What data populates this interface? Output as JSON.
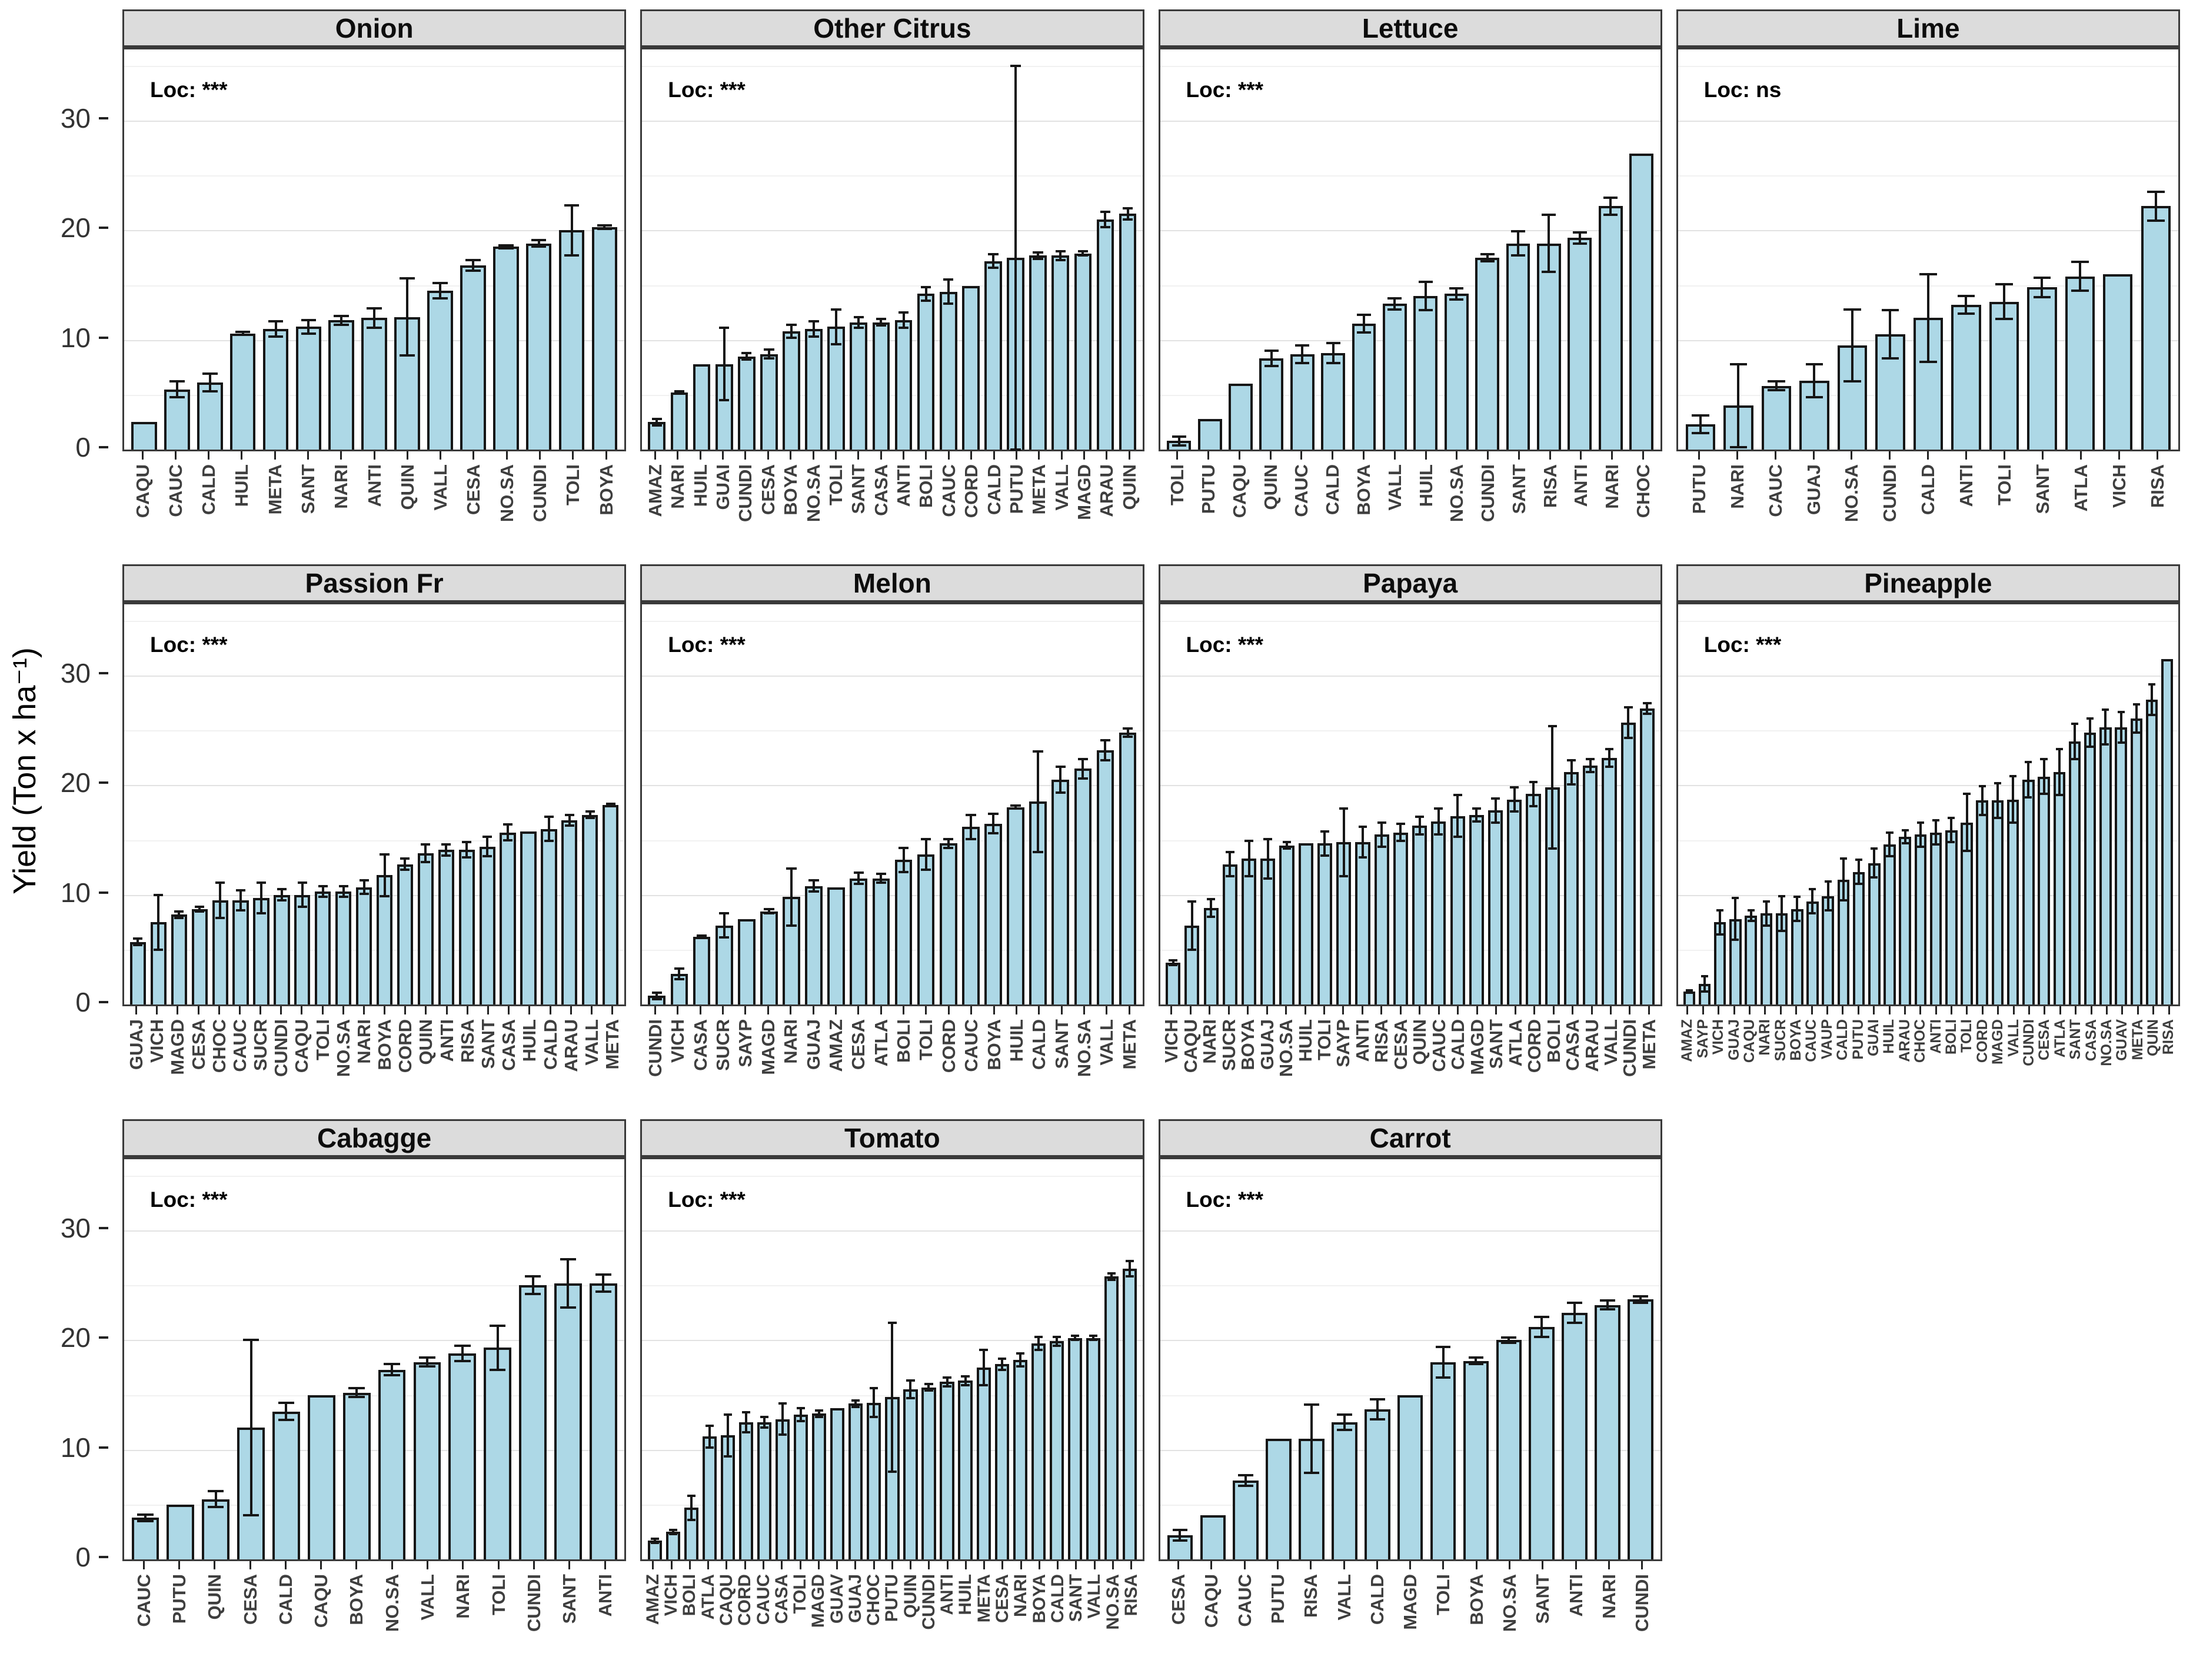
{
  "y_axis": {
    "label": "Yield (Ton x ha⁻¹)",
    "ticks": [
      0,
      10,
      20,
      30
    ],
    "minor_ticks": [
      5,
      15,
      25,
      35
    ],
    "ylim": [
      0,
      36.5
    ]
  },
  "colors": {
    "bar_fill": "#ADD8E6",
    "bar_stroke": "#161616",
    "header_bg": "#DCDCDC",
    "panel_border": "#3a3a3a",
    "grid_major": "#e2e2e2",
    "grid_minor": "#f1f1f1"
  },
  "chart_data": [
    {
      "type": "bar",
      "title": "Onion",
      "loc": "Loc: ***",
      "categories": [
        "CAQU",
        "CAUC",
        "CALD",
        "HUIL",
        "META",
        "SANT",
        "NARI",
        "ANTI",
        "QUIN",
        "VALL",
        "CESA",
        "NO.SA",
        "CUNDI",
        "TOLI",
        "BOYA"
      ],
      "values": [
        2.5,
        5.5,
        6.1,
        10.6,
        11.0,
        11.2,
        11.8,
        12.0,
        12.1,
        14.5,
        16.8,
        18.5,
        18.8,
        20.0,
        20.3
      ],
      "errors": [
        0,
        0.7,
        0.8,
        0.15,
        0.7,
        0.6,
        0.4,
        0.9,
        3.5,
        0.7,
        0.5,
        0.15,
        0.3,
        2.3,
        0.15
      ]
    },
    {
      "type": "bar",
      "title": "Other Citrus",
      "loc": "Loc: ***",
      "categories": [
        "AMAZ",
        "NARI",
        "HUIL",
        "GUAI",
        "CUNDI",
        "CESA",
        "BOYA",
        "NO.SA",
        "TOLI",
        "SANT",
        "CASA",
        "ANTI",
        "BOLI",
        "CAUC",
        "CORD",
        "CALD",
        "PUTU",
        "META",
        "VALL",
        "MAGD",
        "ARAU",
        "QUIN"
      ],
      "values": [
        2.5,
        5.2,
        7.8,
        7.8,
        8.5,
        8.7,
        10.8,
        11.0,
        11.2,
        11.6,
        11.6,
        11.8,
        14.2,
        14.4,
        14.9,
        17.2,
        17.5,
        17.7,
        17.7,
        17.9,
        21.0,
        21.5
      ],
      "errors": [
        0.3,
        0.1,
        0,
        3.3,
        0.3,
        0.4,
        0.6,
        0.7,
        1.6,
        0.5,
        0.3,
        0.7,
        0.6,
        1.1,
        0,
        0.6,
        17.5,
        0.3,
        0.4,
        0.2,
        0.7,
        0.5
      ]
    },
    {
      "type": "bar",
      "title": "Lettuce",
      "loc": "Loc: ***",
      "categories": [
        "TOLI",
        "PUTU",
        "CAQU",
        "QUIN",
        "CAUC",
        "CALD",
        "BOYA",
        "VALL",
        "HUIL",
        "NO.SA",
        "CUNDI",
        "SANT",
        "RISA",
        "ANTI",
        "NARI",
        "CHOC"
      ],
      "values": [
        0.8,
        2.8,
        6.0,
        8.3,
        8.7,
        8.8,
        11.5,
        13.3,
        14.0,
        14.2,
        17.5,
        18.8,
        18.8,
        19.3,
        22.2,
        27.0
      ],
      "errors": [
        0.4,
        0,
        0,
        0.7,
        0.8,
        0.9,
        0.8,
        0.5,
        1.3,
        0.5,
        0.3,
        1.1,
        2.6,
        0.5,
        0.8,
        0
      ]
    },
    {
      "type": "bar",
      "title": "Lime",
      "loc": "Loc: ns",
      "categories": [
        "PUTU",
        "NARI",
        "CAUC",
        "GUAJ",
        "NO.SA",
        "CUNDI",
        "CALD",
        "ANTI",
        "TOLI",
        "SANT",
        "ATLA",
        "VICH",
        "RISA"
      ],
      "values": [
        2.3,
        4.0,
        5.8,
        6.3,
        9.5,
        10.5,
        12.0,
        13.2,
        13.5,
        14.8,
        15.8,
        16.0,
        22.2
      ],
      "errors": [
        0.8,
        3.8,
        0.4,
        1.5,
        3.3,
        2.2,
        4.0,
        0.8,
        1.6,
        0.9,
        1.3,
        0,
        1.3
      ]
    },
    {
      "type": "bar",
      "title": "Passion Fr",
      "loc": "Loc: ***",
      "categories": [
        "GUAJ",
        "VICH",
        "MAGD",
        "CESA",
        "CHOC",
        "CAUC",
        "SUCR",
        "CUNDI",
        "CAQU",
        "TOLI",
        "NO.SA",
        "NARI",
        "BOYA",
        "CORD",
        "QUIN",
        "ANTI",
        "RISA",
        "SANT",
        "CASA",
        "HUIL",
        "CALD",
        "ARAU",
        "VALL",
        "META"
      ],
      "values": [
        5.7,
        7.5,
        8.2,
        8.7,
        9.5,
        9.5,
        9.7,
        10.0,
        10.0,
        10.3,
        10.3,
        10.7,
        11.8,
        12.8,
        13.8,
        14.1,
        14.1,
        14.4,
        15.7,
        15.8,
        16.0,
        16.8,
        17.3,
        18.2
      ],
      "errors": [
        0.3,
        2.5,
        0.3,
        0.2,
        1.6,
        0.9,
        1.4,
        0.5,
        1.1,
        0.5,
        0.5,
        0.6,
        1.9,
        0.5,
        0.8,
        0.5,
        0.7,
        0.9,
        0.7,
        0,
        1.1,
        0.5,
        0.3,
        0.1
      ]
    },
    {
      "type": "bar",
      "title": "Melon",
      "loc": "Loc: ***",
      "categories": [
        "CUNDI",
        "VICH",
        "CASA",
        "SUCR",
        "SAYP",
        "MAGD",
        "NARI",
        "GUAJ",
        "AMAZ",
        "CESA",
        "ATLA",
        "BOLI",
        "TOLI",
        "CORD",
        "CAUC",
        "BOYA",
        "HUIL",
        "CALD",
        "SANT",
        "NO.SA",
        "VALL",
        "META"
      ],
      "values": [
        0.8,
        2.8,
        6.2,
        7.2,
        7.8,
        8.5,
        9.8,
        10.8,
        10.7,
        11.5,
        11.5,
        13.2,
        13.7,
        14.7,
        16.2,
        16.5,
        18.0,
        18.5,
        20.5,
        21.5,
        23.2,
        24.8
      ],
      "errors": [
        0.3,
        0.5,
        0.1,
        1.1,
        0,
        0.2,
        2.6,
        0.5,
        0,
        0.5,
        0.4,
        1.1,
        1.4,
        0.4,
        1.1,
        0.9,
        0.15,
        4.6,
        1.2,
        0.9,
        0.9,
        0.4
      ]
    },
    {
      "type": "bar",
      "title": "Papaya",
      "loc": "Loc: ***",
      "categories": [
        "VICH",
        "CAQU",
        "NARI",
        "SUCR",
        "BOYA",
        "GUAJ",
        "NO.SA",
        "HUIL",
        "TOLI",
        "SAYP",
        "ANTI",
        "RISA",
        "CESA",
        "QUIN",
        "CAUC",
        "CALD",
        "MAGD",
        "SANT",
        "ATLA",
        "CORD",
        "BOLI",
        "CASA",
        "ARAU",
        "VALL",
        "CUNDI",
        "META"
      ],
      "values": [
        3.8,
        7.2,
        8.8,
        12.8,
        13.3,
        13.3,
        14.5,
        14.7,
        14.7,
        14.8,
        14.8,
        15.5,
        15.7,
        16.3,
        16.7,
        17.2,
        17.3,
        17.7,
        18.7,
        19.2,
        19.8,
        21.2,
        21.8,
        22.5,
        25.7,
        27.0
      ],
      "errors": [
        0.2,
        2.2,
        0.8,
        1.1,
        1.6,
        1.8,
        0.3,
        0,
        1.1,
        3.1,
        1.4,
        1.1,
        0.8,
        0.8,
        1.2,
        1.9,
        0.6,
        1.1,
        1.1,
        1.1,
        5.6,
        1.1,
        0.6,
        0.8,
        1.4,
        0.5
      ]
    },
    {
      "type": "bar",
      "title": "Pineapple",
      "loc": "Loc: ***",
      "categories": [
        "AMAZ",
        "SAYP",
        "VICH",
        "GUAJ",
        "CAQU",
        "NARI",
        "SUCR",
        "BOYA",
        "CAUC",
        "VAUP",
        "CALD",
        "PUTU",
        "GUAI",
        "HUIL",
        "ARAU",
        "CHOC",
        "ANTI",
        "BOLI",
        "TOLI",
        "CORD",
        "MAGD",
        "VALL",
        "CUNDI",
        "CESA",
        "ATLA",
        "SANT",
        "CASA",
        "NO.SA",
        "GUAV",
        "META",
        "QUIN",
        "RISA"
      ],
      "values": [
        1.2,
        1.9,
        7.5,
        7.8,
        8.1,
        8.3,
        8.3,
        8.7,
        9.4,
        9.9,
        11.4,
        12.1,
        12.9,
        14.6,
        15.3,
        15.5,
        15.7,
        15.9,
        16.6,
        18.6,
        18.6,
        18.7,
        20.5,
        20.8,
        21.2,
        24.0,
        24.8,
        25.3,
        25.3,
        26.1,
        27.8,
        31.5
      ],
      "errors": [
        0.1,
        0.7,
        1.1,
        1.9,
        0.5,
        1.1,
        1.6,
        1.1,
        1.1,
        1.3,
        1.9,
        1.1,
        1.3,
        1.1,
        0.6,
        1.1,
        1.1,
        1.1,
        2.6,
        1.3,
        1.6,
        2.1,
        1.6,
        1.6,
        2.1,
        1.6,
        1.3,
        1.6,
        1.4,
        1.3,
        1.4,
        0
      ]
    },
    {
      "type": "bar",
      "title": "Cabagge",
      "loc": "Loc: ***",
      "categories": [
        "CAUC",
        "PUTU",
        "QUIN",
        "CESA",
        "CALD",
        "CAQU",
        "BOYA",
        "NO.SA",
        "VALL",
        "NARI",
        "TOLI",
        "CUNDI",
        "SANT",
        "ANTI"
      ],
      "values": [
        3.8,
        5.0,
        5.5,
        12.0,
        13.5,
        15.0,
        15.2,
        17.3,
        18.0,
        18.8,
        19.3,
        25.0,
        25.2,
        25.2
      ],
      "errors": [
        0.3,
        0,
        0.7,
        8.0,
        0.8,
        0,
        0.4,
        0.5,
        0.4,
        0.7,
        2.0,
        0.8,
        2.2,
        0.8
      ]
    },
    {
      "type": "bar",
      "title": "Tomato",
      "loc": "Loc: ***",
      "categories": [
        "AMAZ",
        "VICH",
        "BOLI",
        "ATLA",
        "CAQU",
        "CORD",
        "CAUC",
        "CASA",
        "TOLI",
        "MAGD",
        "GUAV",
        "GUAJ",
        "CHOC",
        "PUTU",
        "QUIN",
        "CUNDI",
        "ANTI",
        "HUIL",
        "META",
        "CESA",
        "NARI",
        "BOYA",
        "CALD",
        "SANT",
        "VALL",
        "NO.SA",
        "RISA"
      ],
      "values": [
        1.7,
        2.5,
        4.7,
        11.2,
        11.3,
        12.5,
        12.5,
        12.8,
        13.2,
        13.3,
        13.8,
        14.2,
        14.3,
        14.8,
        15.5,
        15.7,
        16.2,
        16.3,
        17.5,
        17.8,
        18.2,
        19.7,
        19.9,
        20.2,
        20.2,
        25.8,
        26.5
      ],
      "errors": [
        0.2,
        0.2,
        1.1,
        1.0,
        1.9,
        0.9,
        0.5,
        1.4,
        0.6,
        0.3,
        0,
        0.3,
        1.3,
        6.8,
        0.8,
        0.3,
        0.4,
        0.4,
        1.6,
        0.5,
        0.6,
        0.6,
        0.4,
        0.2,
        0.2,
        0.3,
        0.7
      ]
    },
    {
      "type": "bar",
      "title": "Carrot",
      "loc": "Loc: ***",
      "categories": [
        "CESA",
        "CAQU",
        "CAUC",
        "PUTU",
        "RISA",
        "VALL",
        "CALD",
        "MAGD",
        "TOLI",
        "BOYA",
        "NO.SA",
        "SANT",
        "ANTI",
        "NARI",
        "CUNDI"
      ],
      "values": [
        2.2,
        4.0,
        7.2,
        11.0,
        11.0,
        12.5,
        13.7,
        15.0,
        18.0,
        18.1,
        20.0,
        21.2,
        22.5,
        23.2,
        23.7
      ],
      "errors": [
        0.5,
        0,
        0.5,
        0,
        3.1,
        0.7,
        0.9,
        0,
        1.4,
        0.3,
        0.25,
        0.9,
        0.9,
        0.4,
        0.3
      ]
    }
  ]
}
